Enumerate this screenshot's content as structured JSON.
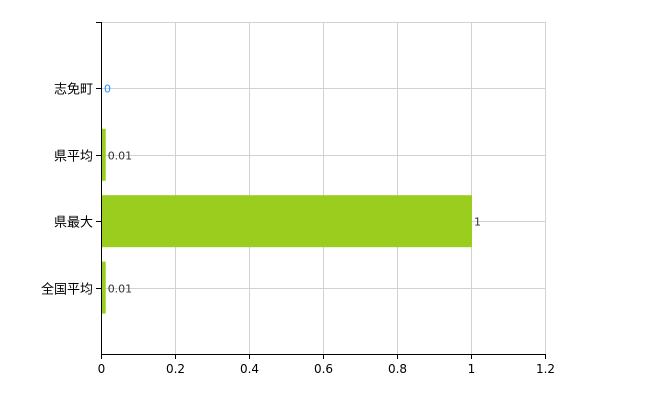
{
  "chart_data": {
    "type": "bar",
    "orientation": "horizontal",
    "categories": [
      "志免町",
      "県平均",
      "県最大",
      "全国平均"
    ],
    "values": [
      0,
      0.01,
      1,
      0.01
    ],
    "data_labels": [
      "0",
      "0.01",
      "1",
      "0.01"
    ],
    "title": "",
    "xlabel": "",
    "ylabel": "",
    "xlim": [
      0,
      1.2
    ],
    "x_ticks": [
      "0",
      "0.2",
      "0.4",
      "0.6",
      "0.8",
      "1",
      "1.2"
    ],
    "grid": true,
    "legend": "none",
    "colors": {
      "bar": "#9ACD1E",
      "grid": "#CCD3D9",
      "axis": "#000000",
      "label_zero": "#1E90FF"
    }
  }
}
